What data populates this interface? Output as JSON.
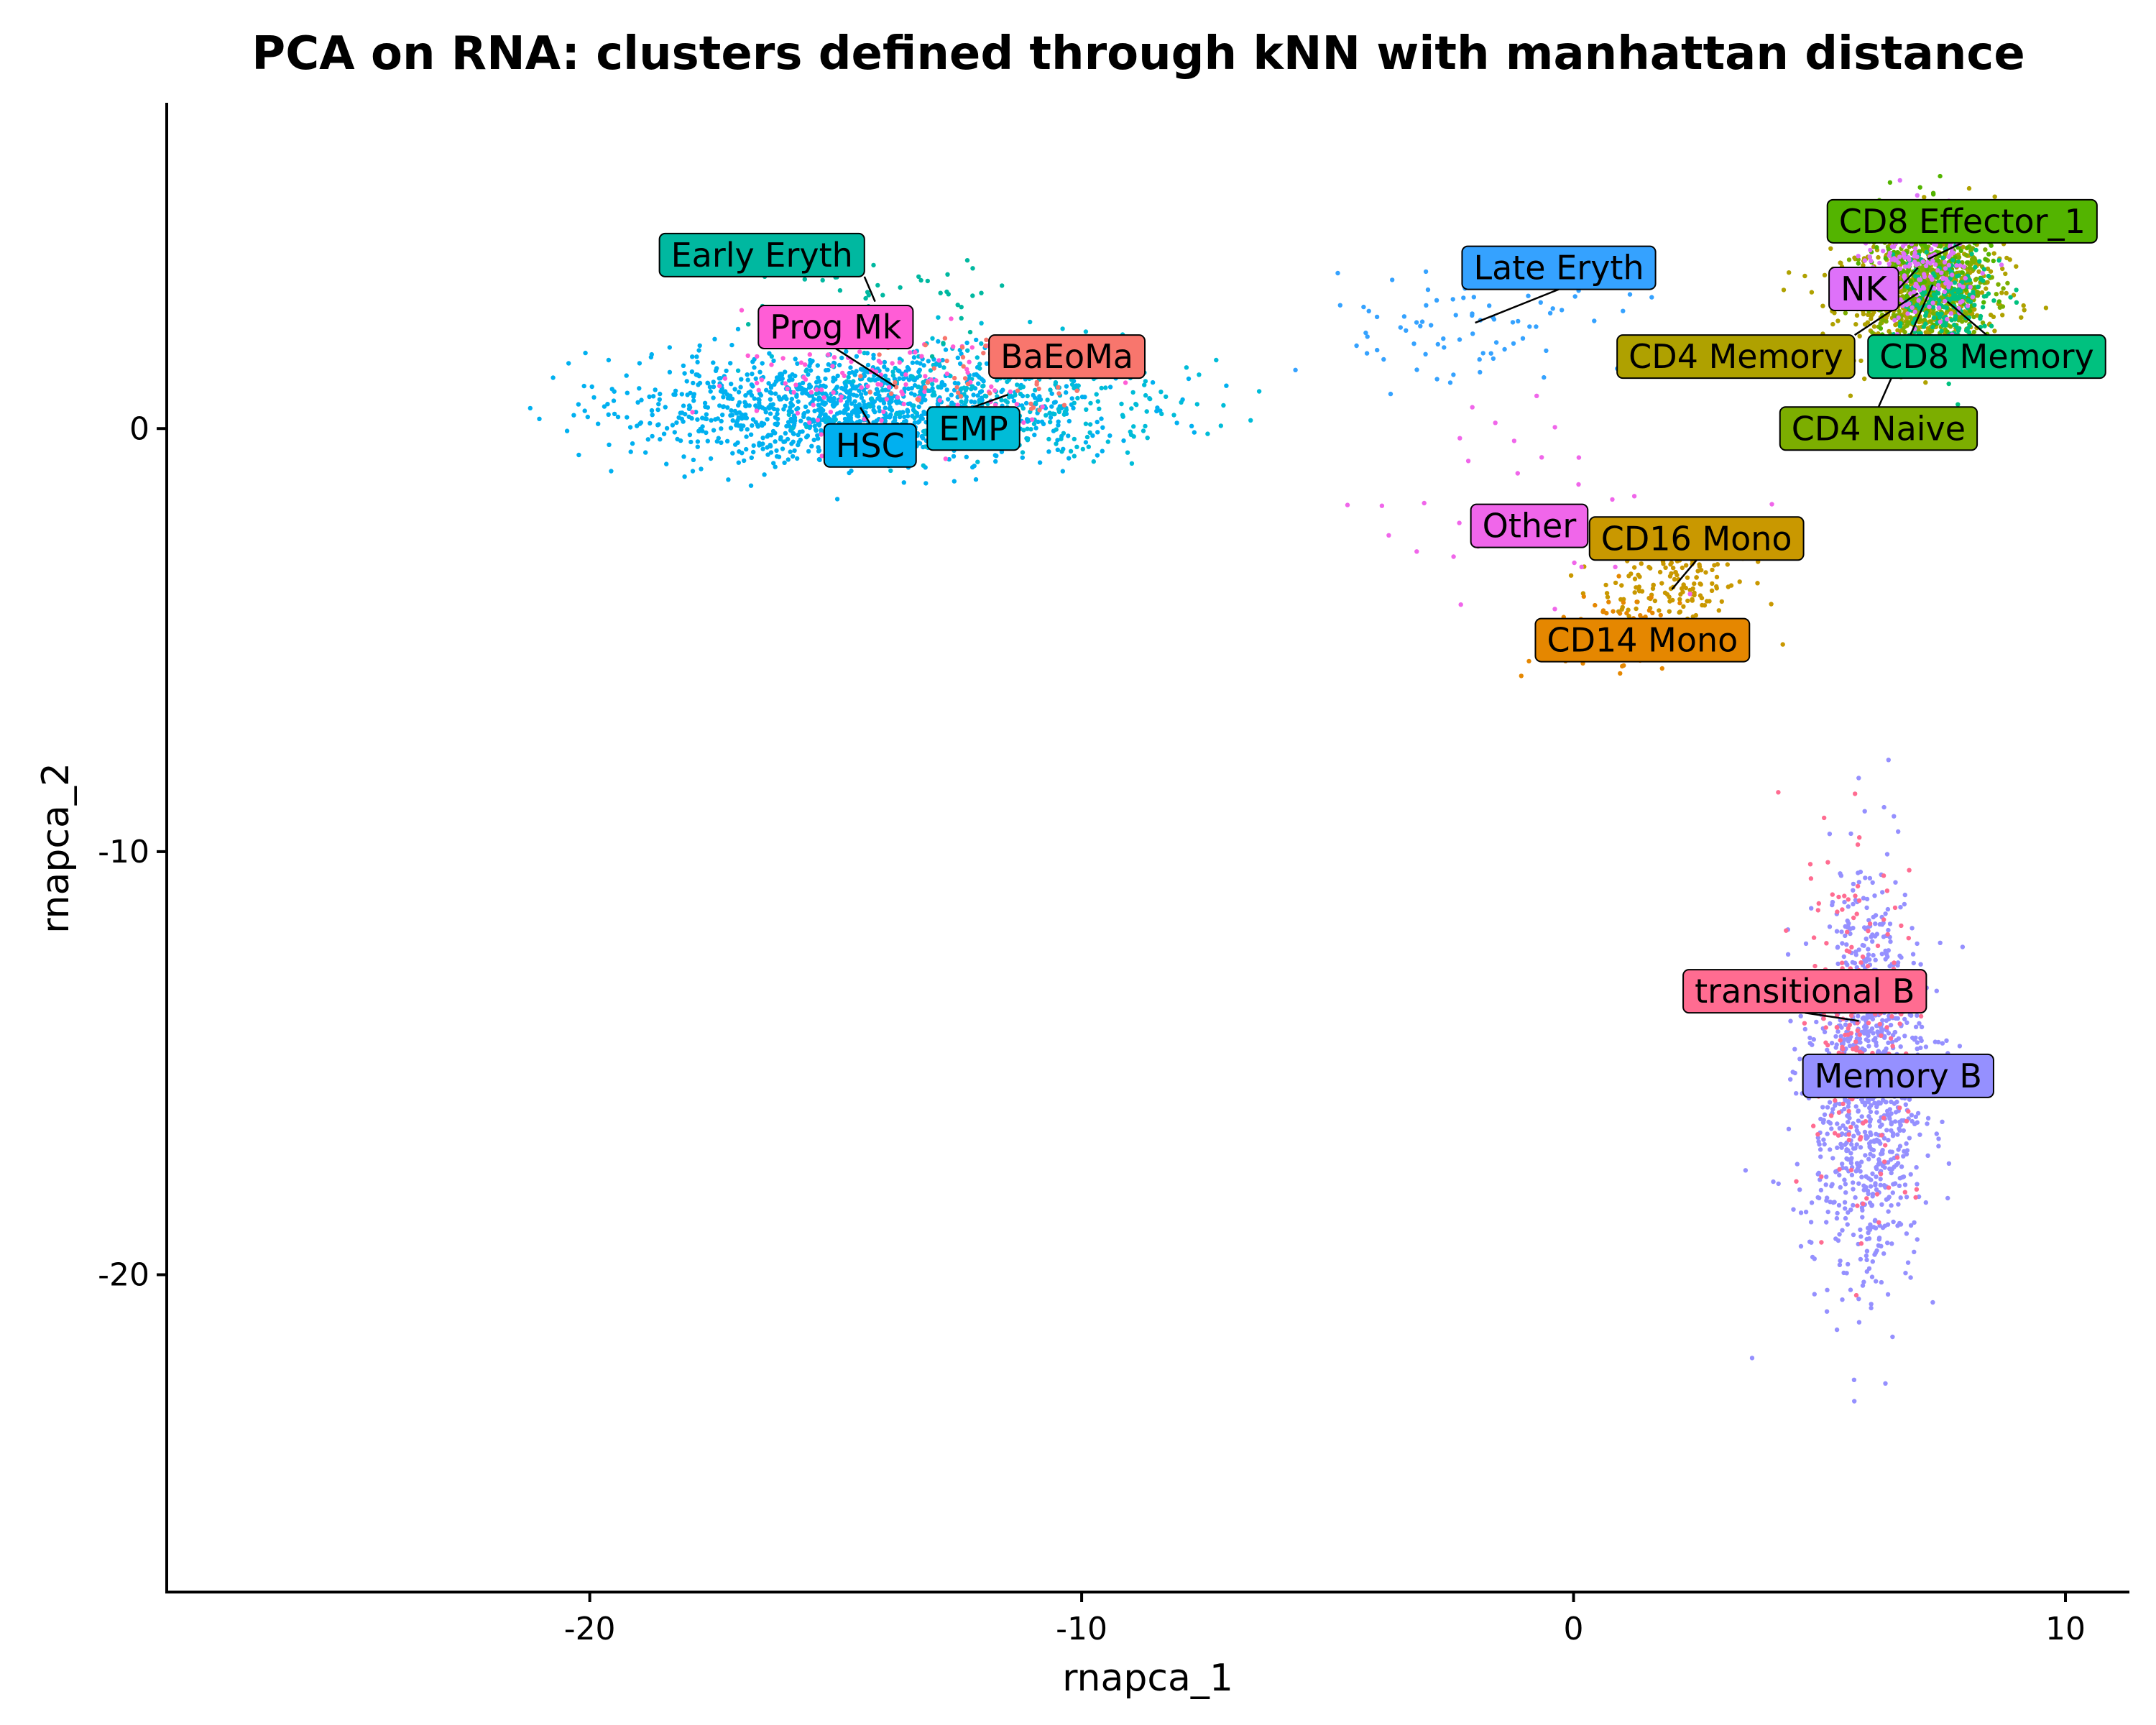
{
  "chart_data": {
    "type": "scatter",
    "title": "PCA on RNA: clusters defined through kNN with manhattan distance",
    "xlabel": "rnapca_1",
    "ylabel": "rnapca_2",
    "xlim": [
      -28.6,
      11.3
    ],
    "ylim": [
      -27.5,
      7.7
    ],
    "xticks": [
      -20,
      -10,
      0,
      10
    ],
    "xtick_labels": [
      "-20",
      "-10",
      "0",
      "10"
    ],
    "yticks": [
      0,
      -10,
      -20
    ],
    "ytick_labels": [
      "0",
      "-10",
      "-20"
    ],
    "grid": false,
    "legend": "none",
    "clusters": [
      {
        "name": "Early Eryth",
        "color": "#00B8A0",
        "label_x": -16.5,
        "label_y": 4.1,
        "center_x": -14.2,
        "center_y": 3.0,
        "spread_x": 2.4,
        "spread_y": 1.0,
        "points": 50
      },
      {
        "name": "Prog Mk",
        "color": "#FF5DD6",
        "label_x": -15.0,
        "label_y": 2.4,
        "center_x": -13.8,
        "center_y": 1.0,
        "spread_x": 3.0,
        "spread_y": 1.3,
        "points": 120
      },
      {
        "name": "BaEoMa",
        "color": "#F8766D",
        "label_x": -10.3,
        "label_y": 1.7,
        "center_x": -11.8,
        "center_y": 1.2,
        "spread_x": 2.5,
        "spread_y": 1.0,
        "points": 60
      },
      {
        "name": "HSC",
        "color": "#00B0F0",
        "label_x": -14.3,
        "label_y": -0.4,
        "center_x": -14.5,
        "center_y": 0.5,
        "spread_x": 4.2,
        "spread_y": 1.2,
        "points": 1300
      },
      {
        "name": "EMP",
        "color": "#00BCD8",
        "label_x": -12.2,
        "label_y": 0.0,
        "center_x": -11.5,
        "center_y": 0.8,
        "spread_x": 3.5,
        "spread_y": 1.2,
        "points": 300
      },
      {
        "name": "Late Eryth",
        "color": "#35A2FF",
        "label_x": -0.3,
        "label_y": 3.8,
        "center_x": -2.0,
        "center_y": 2.5,
        "spread_x": 2.5,
        "spread_y": 1.2,
        "points": 80
      },
      {
        "name": "CD8 Effector_1",
        "color": "#53B400",
        "label_x": 7.9,
        "label_y": 4.9,
        "center_x": 7.2,
        "center_y": 4.0,
        "spread_x": 1.1,
        "spread_y": 1.2,
        "points": 250
      },
      {
        "name": "NK",
        "color": "#DE71F9",
        "label_x": 5.9,
        "label_y": 3.3,
        "center_x": 7.0,
        "center_y": 3.8,
        "spread_x": 1.0,
        "spread_y": 1.2,
        "points": 200
      },
      {
        "name": "CD4 Memory",
        "color": "#AFA100",
        "label_x": 3.3,
        "label_y": 1.7,
        "center_x": 7.0,
        "center_y": 3.2,
        "spread_x": 1.5,
        "spread_y": 1.5,
        "points": 650
      },
      {
        "name": "CD8 Memory",
        "color": "#00C17F",
        "label_x": 8.4,
        "label_y": 1.7,
        "center_x": 7.6,
        "center_y": 3.0,
        "spread_x": 1.0,
        "spread_y": 1.3,
        "points": 220
      },
      {
        "name": "CD4 Naive",
        "color": "#7CAE00",
        "label_x": 6.2,
        "label_y": 0.0,
        "center_x": 7.3,
        "center_y": 3.4,
        "spread_x": 1.1,
        "spread_y": 1.3,
        "points": 420
      },
      {
        "name": "Other",
        "color": "#F066EA",
        "label_x": -0.9,
        "label_y": -2.3,
        "center_x": -0.5,
        "center_y": -2.5,
        "spread_x": 3.5,
        "spread_y": 3.0,
        "points": 40
      },
      {
        "name": "CD16 Mono",
        "color": "#C99800",
        "label_x": 2.5,
        "label_y": -2.6,
        "center_x": 2.0,
        "center_y": -3.8,
        "spread_x": 1.3,
        "spread_y": 0.9,
        "points": 150
      },
      {
        "name": "CD14 Mono",
        "color": "#E58700",
        "label_x": 1.4,
        "label_y": -5.0,
        "center_x": 0.8,
        "center_y": -4.8,
        "spread_x": 1.3,
        "spread_y": 0.8,
        "points": 110
      },
      {
        "name": "transitional B",
        "color": "#FF6C91",
        "label_x": 4.7,
        "label_y": -13.3,
        "center_x": 5.8,
        "center_y": -14.0,
        "spread_x": 1.0,
        "spread_y": 4.0,
        "points": 200
      },
      {
        "name": "Memory B",
        "color": "#9590FF",
        "label_x": 6.6,
        "label_y": -15.3,
        "center_x": 6.0,
        "center_y": -15.5,
        "spread_x": 1.1,
        "spread_y": 4.2,
        "points": 1050
      }
    ]
  }
}
